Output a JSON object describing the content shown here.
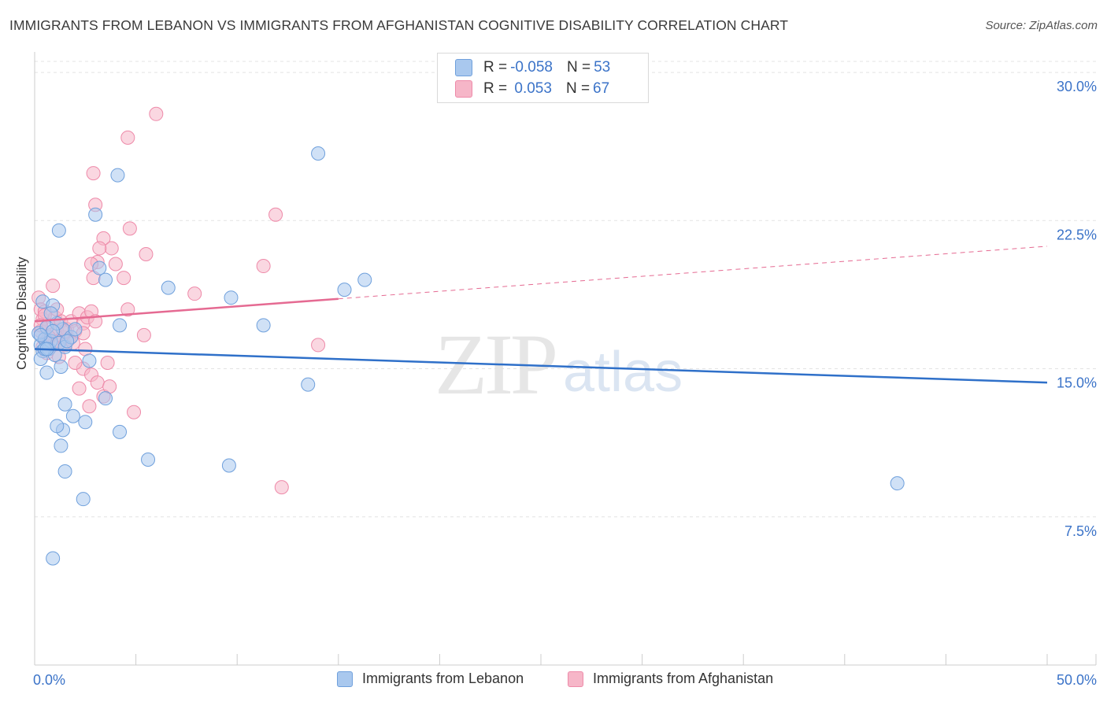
{
  "header": {
    "title": "IMMIGRANTS FROM LEBANON VS IMMIGRANTS FROM AFGHANISTAN COGNITIVE DISABILITY CORRELATION CHART",
    "source": "Source: ZipAtlas.com"
  },
  "watermark": {
    "zip": "ZIP",
    "atlas": "atlas"
  },
  "legend": {
    "rows": [
      {
        "r_label": "R = ",
        "r_value": "-0.058",
        "n_label": "N = ",
        "n_value": "53",
        "color": "#a9c8ee"
      },
      {
        "r_label": "R = ",
        "r_value": " 0.053",
        "n_label": "N = ",
        "n_value": "67",
        "color": "#f6b6c8"
      }
    ]
  },
  "bottom_legend": {
    "items": [
      {
        "label": "Immigrants from Lebanon",
        "color": "#a9c8ee"
      },
      {
        "label": "Immigrants from Afghanistan",
        "color": "#f6b6c8"
      }
    ]
  },
  "chart_data": {
    "type": "scatter",
    "title": "IMMIGRANTS FROM LEBANON VS IMMIGRANTS FROM AFGHANISTAN COGNITIVE DISABILITY CORRELATION CHART",
    "xlabel": "",
    "ylabel": "Cognitive Disability",
    "xlim": [
      0,
      50
    ],
    "ylim": [
      0,
      30.8
    ],
    "x_tick_labels": [
      "0.0%",
      "50.0%"
    ],
    "y_ticks": [
      7.5,
      15.0,
      22.5,
      30.0
    ],
    "y_tick_labels": [
      "7.5%",
      "15.0%",
      "22.5%",
      "30.0%"
    ],
    "grid": "horizontal dashed",
    "series": [
      {
        "name": "Immigrants from Lebanon",
        "color": "#6fa0dc",
        "fill": "#a9c8ee",
        "r": -0.058,
        "n": 53,
        "trend": {
          "x0": 0,
          "y0": 16.0,
          "x1": 50,
          "y1": 14.3,
          "dashed_from": null
        },
        "points": [
          [
            0.2,
            16.8
          ],
          [
            0.3,
            16.2
          ],
          [
            0.4,
            15.9
          ],
          [
            0.5,
            16.5
          ],
          [
            0.6,
            17.1
          ],
          [
            0.3,
            15.5
          ],
          [
            0.7,
            16.0
          ],
          [
            0.8,
            16.4
          ],
          [
            0.4,
            18.4
          ],
          [
            0.9,
            18.2
          ],
          [
            0.6,
            14.8
          ],
          [
            1.0,
            15.7
          ],
          [
            1.2,
            16.3
          ],
          [
            1.4,
            17.0
          ],
          [
            1.5,
            16.1
          ],
          [
            1.8,
            16.6
          ],
          [
            1.1,
            17.3
          ],
          [
            1.3,
            15.1
          ],
          [
            2.0,
            17.0
          ],
          [
            0.5,
            16.0
          ],
          [
            0.9,
            16.9
          ],
          [
            1.6,
            16.4
          ],
          [
            1.2,
            22.0
          ],
          [
            3.0,
            22.8
          ],
          [
            4.1,
            24.8
          ],
          [
            3.2,
            20.1
          ],
          [
            3.5,
            19.5
          ],
          [
            4.2,
            17.2
          ],
          [
            1.5,
            13.2
          ],
          [
            1.4,
            11.9
          ],
          [
            2.5,
            12.3
          ],
          [
            1.3,
            11.1
          ],
          [
            1.9,
            12.6
          ],
          [
            1.1,
            12.1
          ],
          [
            3.5,
            13.5
          ],
          [
            2.7,
            15.4
          ],
          [
            1.5,
            9.8
          ],
          [
            2.4,
            8.4
          ],
          [
            5.6,
            10.4
          ],
          [
            4.2,
            11.8
          ],
          [
            0.9,
            5.4
          ],
          [
            6.6,
            19.1
          ],
          [
            9.7,
            18.6
          ],
          [
            11.3,
            17.2
          ],
          [
            13.5,
            14.2
          ],
          [
            9.6,
            10.1
          ],
          [
            14.0,
            25.9
          ],
          [
            15.3,
            19.0
          ],
          [
            16.3,
            19.5
          ],
          [
            42.6,
            9.2
          ],
          [
            0.6,
            16.0
          ],
          [
            0.8,
            17.8
          ],
          [
            0.3,
            16.7
          ]
        ]
      },
      {
        "name": "Immigrants from Afghanistan",
        "color": "#ee8aa9",
        "fill": "#f6b6c8",
        "r": 0.053,
        "n": 67,
        "trend": {
          "x0": 0,
          "y0": 17.4,
          "x1": 50,
          "y1": 21.2,
          "dashed_from": 15.0
        },
        "points": [
          [
            0.2,
            18.6
          ],
          [
            0.3,
            18.0
          ],
          [
            0.4,
            17.5
          ],
          [
            0.5,
            17.9
          ],
          [
            0.3,
            16.9
          ],
          [
            0.6,
            16.4
          ],
          [
            0.7,
            17.2
          ],
          [
            0.8,
            16.7
          ],
          [
            0.9,
            16.2
          ],
          [
            1.0,
            17.6
          ],
          [
            1.1,
            16.9
          ],
          [
            1.2,
            16.4
          ],
          [
            1.3,
            17.4
          ],
          [
            1.4,
            16.6
          ],
          [
            1.5,
            16.2
          ],
          [
            1.6,
            17.0
          ],
          [
            1.7,
            16.5
          ],
          [
            1.8,
            17.4
          ],
          [
            0.4,
            16.1
          ],
          [
            0.6,
            15.8
          ],
          [
            0.9,
            19.2
          ],
          [
            1.2,
            15.6
          ],
          [
            0.5,
            17.7
          ],
          [
            0.3,
            17.2
          ],
          [
            2.0,
            16.9
          ],
          [
            2.2,
            17.8
          ],
          [
            2.4,
            17.3
          ],
          [
            2.6,
            17.6
          ],
          [
            2.8,
            17.9
          ],
          [
            2.4,
            16.8
          ],
          [
            2.9,
            19.6
          ],
          [
            3.1,
            20.4
          ],
          [
            3.4,
            21.6
          ],
          [
            3.8,
            21.1
          ],
          [
            4.0,
            20.3
          ],
          [
            4.4,
            19.6
          ],
          [
            4.7,
            22.1
          ],
          [
            5.5,
            20.8
          ],
          [
            4.6,
            18.0
          ],
          [
            5.4,
            16.7
          ],
          [
            3.2,
            21.1
          ],
          [
            3.0,
            23.3
          ],
          [
            2.9,
            24.9
          ],
          [
            4.6,
            26.7
          ],
          [
            6.0,
            27.9
          ],
          [
            2.8,
            20.3
          ],
          [
            2.4,
            15.0
          ],
          [
            2.8,
            14.7
          ],
          [
            3.1,
            14.3
          ],
          [
            3.6,
            15.3
          ],
          [
            3.4,
            13.6
          ],
          [
            2.7,
            13.1
          ],
          [
            3.7,
            14.1
          ],
          [
            4.9,
            12.8
          ],
          [
            2.2,
            14.0
          ],
          [
            2.0,
            15.3
          ],
          [
            7.9,
            18.8
          ],
          [
            11.3,
            20.2
          ],
          [
            11.9,
            22.8
          ],
          [
            12.2,
            9.0
          ],
          [
            14.0,
            16.2
          ],
          [
            3.0,
            17.4
          ],
          [
            0.7,
            16.6
          ],
          [
            1.1,
            18.0
          ],
          [
            1.5,
            16.9
          ],
          [
            1.9,
            16.3
          ],
          [
            2.5,
            16.0
          ]
        ]
      }
    ]
  }
}
